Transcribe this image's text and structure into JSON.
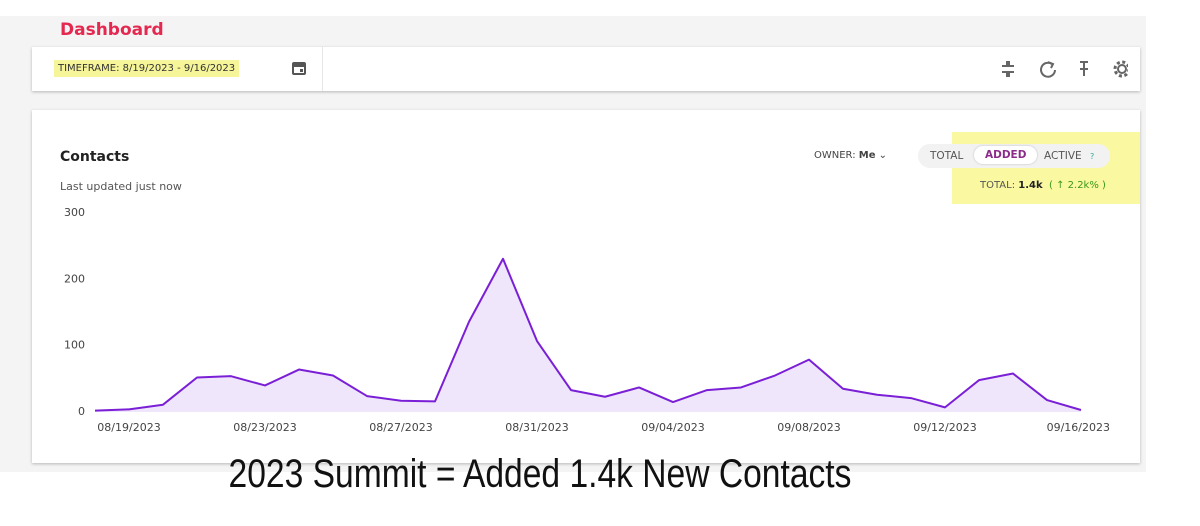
{
  "header": {
    "title": "Dashboard",
    "timeframe": "TIMEFRAME: 8/19/2023 - 9/16/2023"
  },
  "widget": {
    "title": "Contacts",
    "updated": "Last updated just now",
    "owner_label": "OWNER:",
    "owner_value": "Me",
    "tabs": [
      "TOTAL",
      "ADDED",
      "ACTIVE"
    ],
    "help": "?",
    "total_label": "TOTAL:",
    "total_value": "1.4k",
    "change": "( ↑ 2.2k% )"
  },
  "chart_data": {
    "type": "line",
    "color": "#7a1fd6",
    "fill": "#efe6fb",
    "categories": [
      null,
      "08/19/2023",
      null,
      null,
      null,
      "08/23/2023",
      null,
      null,
      null,
      "08/27/2023",
      null,
      null,
      null,
      "08/31/2023",
      null,
      null,
      null,
      "09/04/2023",
      null,
      null,
      null,
      "09/08/2023",
      null,
      null,
      null,
      "09/12/2023",
      null,
      null,
      null,
      "09/16/2023"
    ],
    "values": [
      2,
      4,
      11,
      52,
      54,
      40,
      64,
      55,
      24,
      17,
      16,
      136,
      231,
      107,
      33,
      23,
      37,
      15,
      33,
      37,
      55,
      79,
      35,
      26,
      21,
      7,
      48,
      58,
      18,
      3
    ],
    "ylim": [
      0,
      300
    ],
    "yticks": [
      0,
      100,
      200,
      300
    ]
  },
  "caption": "2023 Summit = Added 1.4k New Contacts"
}
